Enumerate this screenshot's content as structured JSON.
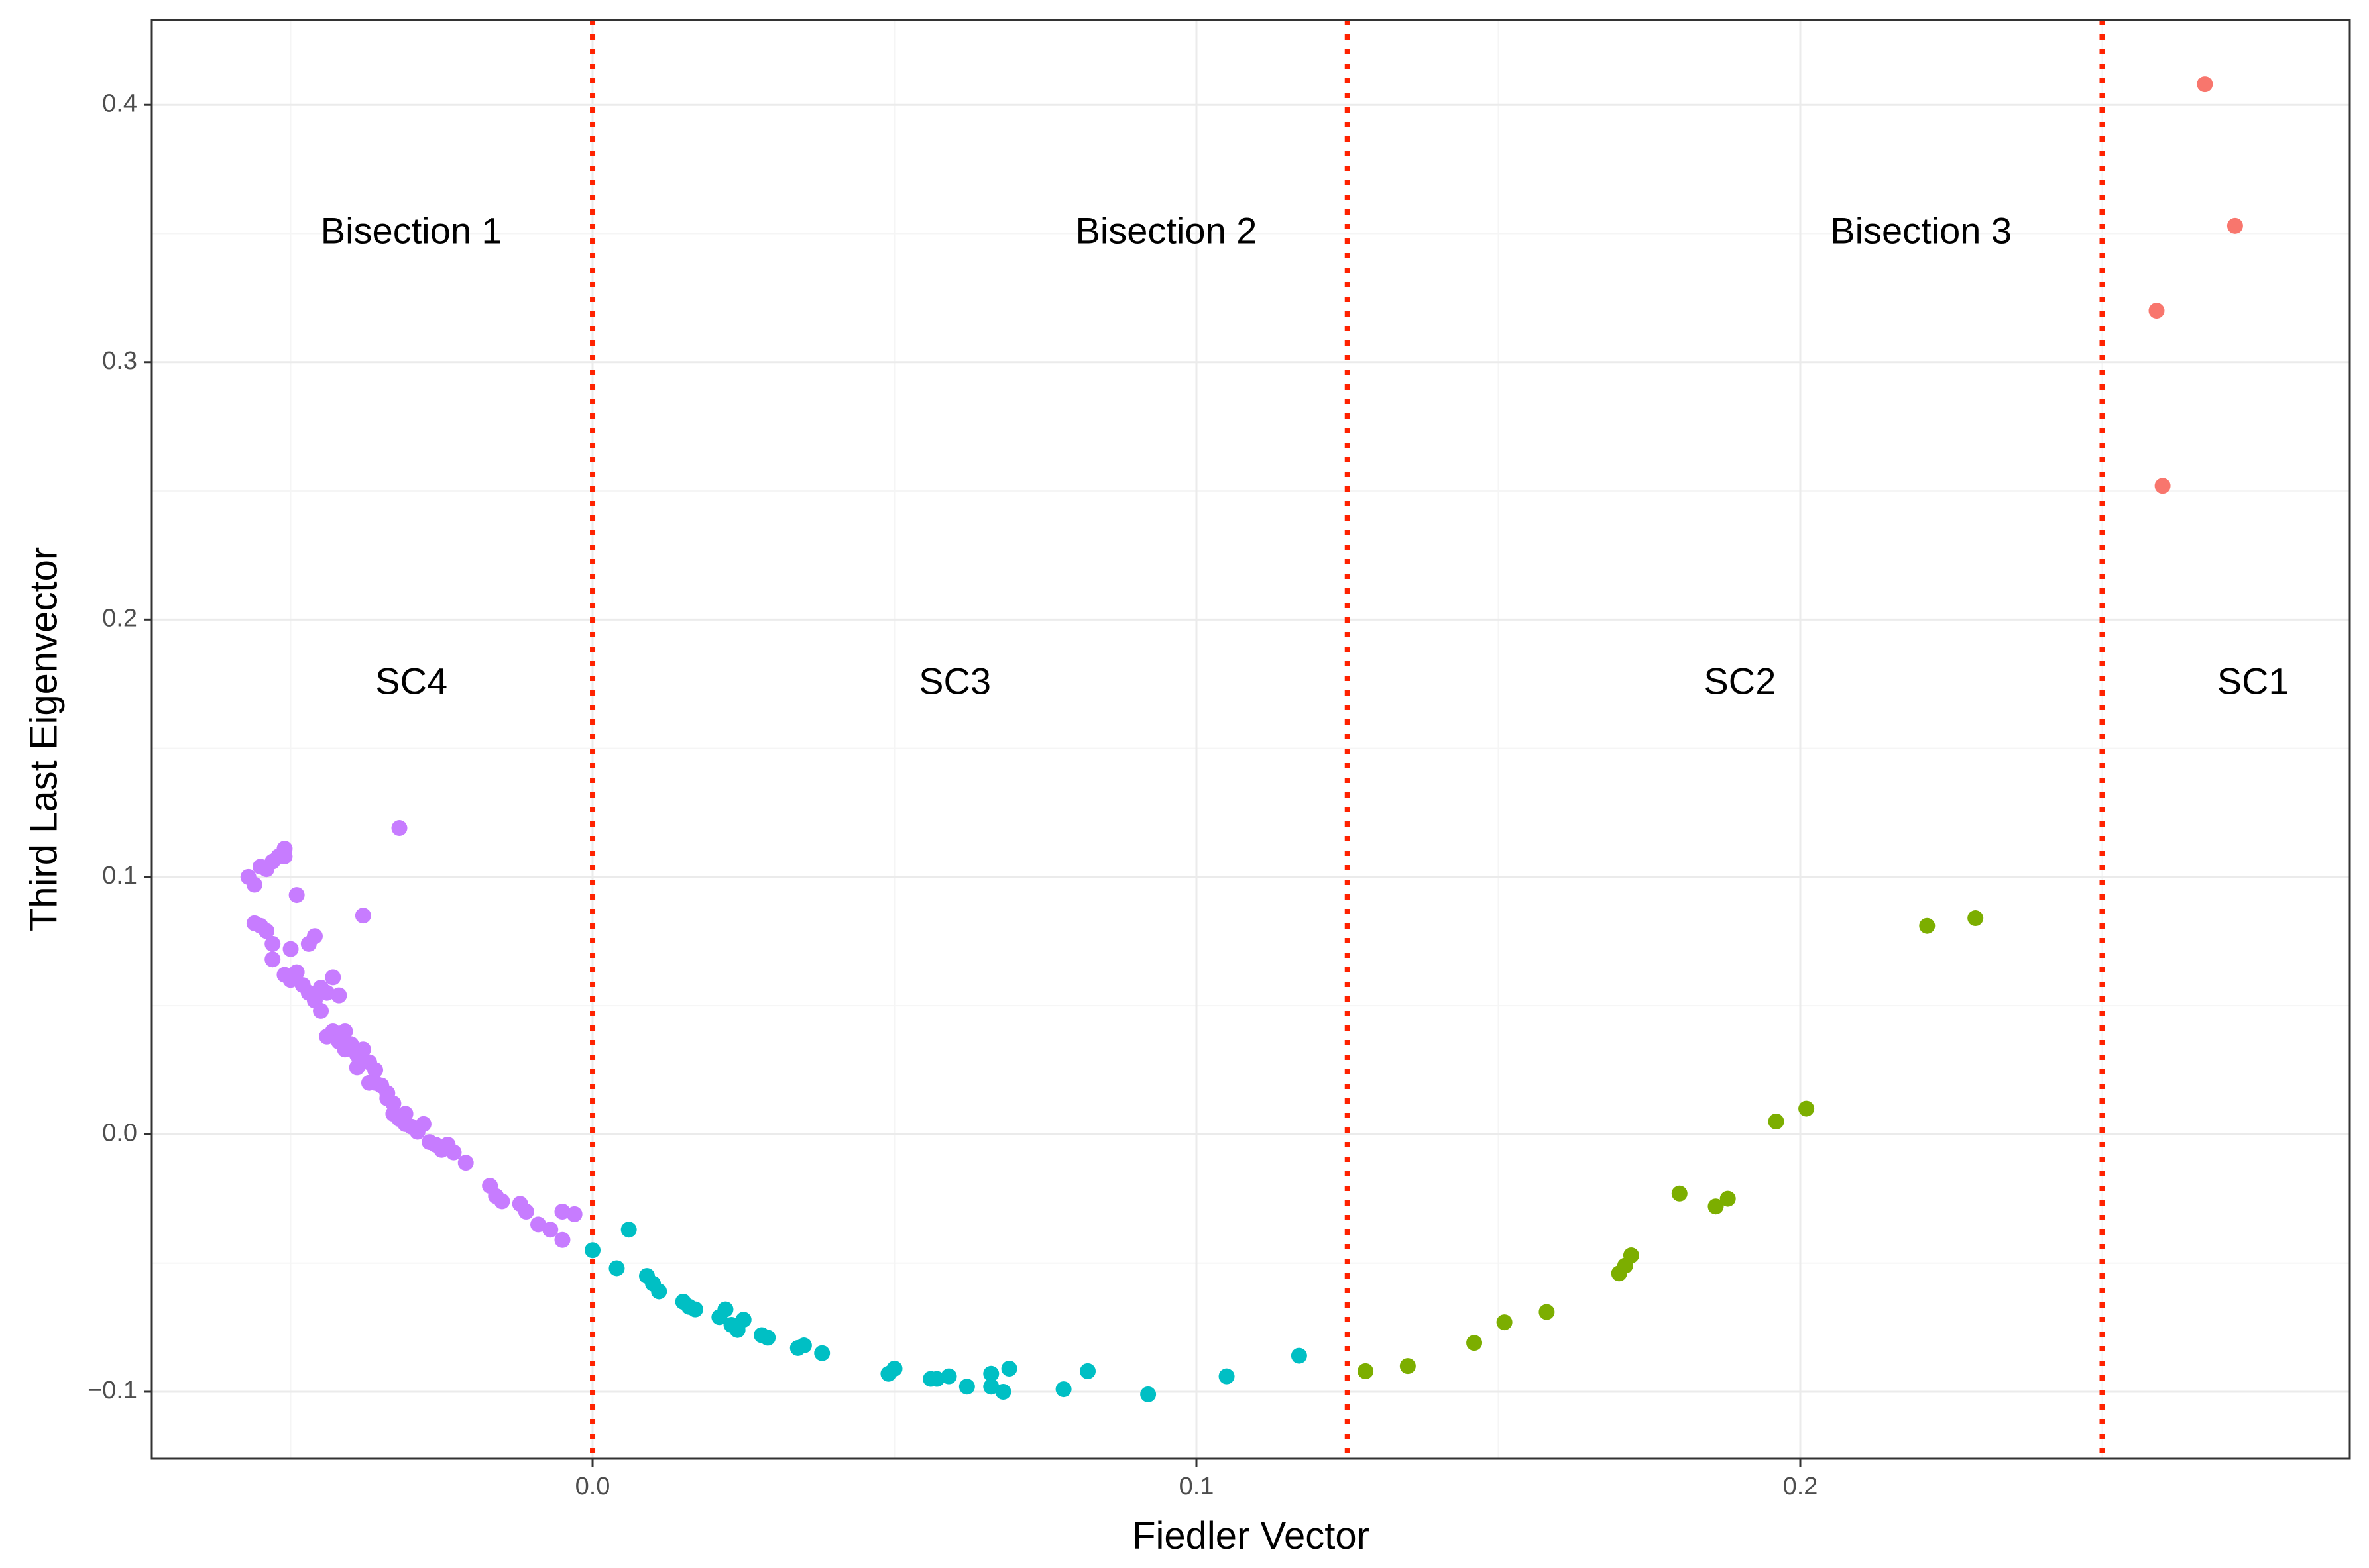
{
  "chart_data": {
    "type": "scatter",
    "title": "",
    "xlabel": "Fiedler Vector",
    "ylabel": "Third Last Eigenvector",
    "xlim": [
      -0.073,
      0.291
    ],
    "ylim": [
      -0.126,
      0.433
    ],
    "x_ticks": [
      0.0,
      0.1,
      0.2
    ],
    "x_tick_labels": [
      "0.0",
      "0.1",
      "0.2"
    ],
    "y_ticks": [
      -0.1,
      0.0,
      0.1,
      0.2,
      0.3,
      0.4
    ],
    "y_tick_labels": [
      "−0.1",
      "0.0",
      "0.1",
      "0.2",
      "0.3",
      "0.4"
    ],
    "grid": true,
    "legend": "none",
    "divider_lines": [
      0.0,
      0.125,
      0.25
    ],
    "divider_color": "#ff2200",
    "colors": {
      "SC1": "#f8766d",
      "SC2": "#7cae00",
      "SC3": "#00bfc4",
      "SC4": "#c77cff",
      "grid_major": "#ebebeb",
      "grid_minor": "#f5f5f5",
      "panel_border": "#333333"
    },
    "annotations": [
      {
        "text": "Bisection 1",
        "x": -0.03,
        "y": 0.35
      },
      {
        "text": "Bisection 2",
        "x": 0.095,
        "y": 0.35
      },
      {
        "text": "Bisection 3",
        "x": 0.22,
        "y": 0.35
      },
      {
        "text": "SC4",
        "x": -0.03,
        "y": 0.175
      },
      {
        "text": "SC3",
        "x": 0.06,
        "y": 0.175
      },
      {
        "text": "SC2",
        "x": 0.19,
        "y": 0.175
      },
      {
        "text": "SC1",
        "x": 0.275,
        "y": 0.175
      }
    ],
    "series": [
      {
        "group": "SC1",
        "points": [
          [
            0.267,
            0.408
          ],
          [
            0.272,
            0.353
          ],
          [
            0.259,
            0.32
          ],
          [
            0.26,
            0.252
          ]
        ]
      },
      {
        "group": "SC2",
        "points": [
          [
            0.128,
            -0.092
          ],
          [
            0.135,
            -0.09
          ],
          [
            0.146,
            -0.081
          ],
          [
            0.151,
            -0.073
          ],
          [
            0.158,
            -0.069
          ],
          [
            0.17,
            -0.054
          ],
          [
            0.171,
            -0.051
          ],
          [
            0.172,
            -0.047
          ],
          [
            0.18,
            -0.023
          ],
          [
            0.186,
            -0.028
          ],
          [
            0.188,
            -0.025
          ],
          [
            0.196,
            0.005
          ],
          [
            0.201,
            0.01
          ],
          [
            0.221,
            0.081
          ],
          [
            0.229,
            0.084
          ]
        ]
      },
      {
        "group": "SC3",
        "points": [
          [
            0.0,
            -0.045
          ],
          [
            0.004,
            -0.052
          ],
          [
            0.006,
            -0.037
          ],
          [
            0.009,
            -0.055
          ],
          [
            0.01,
            -0.058
          ],
          [
            0.011,
            -0.061
          ],
          [
            0.015,
            -0.065
          ],
          [
            0.016,
            -0.067
          ],
          [
            0.017,
            -0.068
          ],
          [
            0.021,
            -0.071
          ],
          [
            0.022,
            -0.068
          ],
          [
            0.023,
            -0.074
          ],
          [
            0.024,
            -0.076
          ],
          [
            0.025,
            -0.072
          ],
          [
            0.028,
            -0.078
          ],
          [
            0.029,
            -0.079
          ],
          [
            0.034,
            -0.083
          ],
          [
            0.035,
            -0.082
          ],
          [
            0.038,
            -0.085
          ],
          [
            0.049,
            -0.093
          ],
          [
            0.05,
            -0.091
          ],
          [
            0.056,
            -0.095
          ],
          [
            0.057,
            -0.095
          ],
          [
            0.059,
            -0.094
          ],
          [
            0.062,
            -0.098
          ],
          [
            0.066,
            -0.093
          ],
          [
            0.066,
            -0.098
          ],
          [
            0.068,
            -0.1
          ],
          [
            0.069,
            -0.091
          ],
          [
            0.078,
            -0.099
          ],
          [
            0.082,
            -0.092
          ],
          [
            0.092,
            -0.101
          ],
          [
            0.105,
            -0.094
          ],
          [
            0.117,
            -0.086
          ]
        ]
      },
      {
        "group": "SC4",
        "points": [
          [
            -0.057,
            0.1
          ],
          [
            -0.056,
            0.097
          ],
          [
            -0.055,
            0.104
          ],
          [
            -0.054,
            0.103
          ],
          [
            -0.053,
            0.106
          ],
          [
            -0.052,
            0.108
          ],
          [
            -0.051,
            0.111
          ],
          [
            -0.051,
            0.108
          ],
          [
            -0.049,
            0.093
          ],
          [
            -0.032,
            0.119
          ],
          [
            -0.056,
            0.082
          ],
          [
            -0.055,
            0.081
          ],
          [
            -0.054,
            0.079
          ],
          [
            -0.053,
            0.074
          ],
          [
            -0.053,
            0.068
          ],
          [
            -0.051,
            0.062
          ],
          [
            -0.05,
            0.072
          ],
          [
            -0.05,
            0.06
          ],
          [
            -0.049,
            0.063
          ],
          [
            -0.048,
            0.058
          ],
          [
            -0.047,
            0.074
          ],
          [
            -0.046,
            0.077
          ],
          [
            -0.047,
            0.055
          ],
          [
            -0.046,
            0.052
          ],
          [
            -0.045,
            0.057
          ],
          [
            -0.045,
            0.048
          ],
          [
            -0.044,
            0.055
          ],
          [
            -0.044,
            0.038
          ],
          [
            -0.043,
            0.061
          ],
          [
            -0.043,
            0.04
          ],
          [
            -0.042,
            0.054
          ],
          [
            -0.042,
            0.036
          ],
          [
            -0.041,
            0.04
          ],
          [
            -0.041,
            0.033
          ],
          [
            -0.04,
            0.035
          ],
          [
            -0.039,
            0.031
          ],
          [
            -0.039,
            0.026
          ],
          [
            -0.038,
            0.085
          ],
          [
            -0.038,
            0.033
          ],
          [
            -0.037,
            0.028
          ],
          [
            -0.037,
            0.02
          ],
          [
            -0.036,
            0.025
          ],
          [
            -0.036,
            0.02
          ],
          [
            -0.035,
            0.019
          ],
          [
            -0.034,
            0.016
          ],
          [
            -0.034,
            0.014
          ],
          [
            -0.033,
            0.012
          ],
          [
            -0.033,
            0.008
          ],
          [
            -0.032,
            0.006
          ],
          [
            -0.031,
            0.008
          ],
          [
            -0.031,
            0.004
          ],
          [
            -0.03,
            0.003
          ],
          [
            -0.029,
            0.001
          ],
          [
            -0.028,
            0.004
          ],
          [
            -0.027,
            -0.003
          ],
          [
            -0.026,
            -0.004
          ],
          [
            -0.025,
            -0.006
          ],
          [
            -0.024,
            -0.004
          ],
          [
            -0.023,
            -0.007
          ],
          [
            -0.021,
            -0.011
          ],
          [
            -0.017,
            -0.02
          ],
          [
            -0.016,
            -0.024
          ],
          [
            -0.015,
            -0.026
          ],
          [
            -0.012,
            -0.027
          ],
          [
            -0.011,
            -0.03
          ],
          [
            -0.009,
            -0.035
          ],
          [
            -0.007,
            -0.037
          ],
          [
            -0.005,
            -0.03
          ],
          [
            -0.005,
            -0.041
          ],
          [
            -0.003,
            -0.031
          ]
        ]
      }
    ]
  }
}
